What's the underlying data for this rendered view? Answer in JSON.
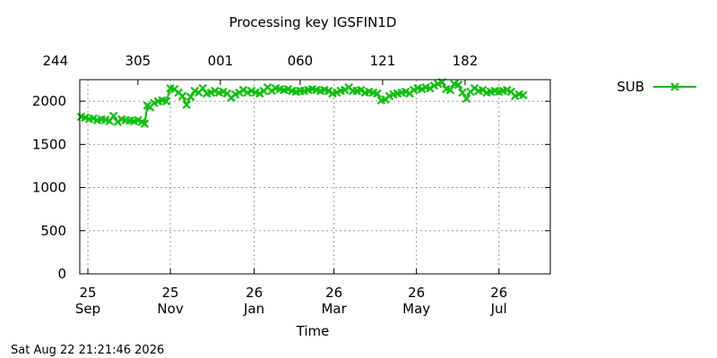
{
  "footer_timestamp": "Sat Aug 22 21:21:46 2026",
  "chart_data": {
    "type": "line",
    "title": "Processing key IGSFIN1D",
    "xlabel": "Time",
    "ylabel": "",
    "xlim": [
      "2025-09-19",
      "2026-09-02"
    ],
    "ylim": [
      0,
      2250
    ],
    "yticks": [
      0,
      500,
      1000,
      1500,
      2000
    ],
    "x_ticks_bottom": [
      {
        "date": "2025-09-25",
        "line1": "25",
        "line2": "Sep"
      },
      {
        "date": "2025-11-25",
        "line1": "25",
        "line2": "Nov"
      },
      {
        "date": "2026-01-26",
        "line1": "26",
        "line2": "Jan"
      },
      {
        "date": "2026-03-26",
        "line1": "26",
        "line2": "Mar"
      },
      {
        "date": "2026-05-26",
        "line1": "26",
        "line2": "May"
      },
      {
        "date": "2026-07-26",
        "line1": "26",
        "line2": "Jul"
      }
    ],
    "x_ticks_top": [
      {
        "date": "2025-09-01",
        "label": "244"
      },
      {
        "date": "2025-11-01",
        "label": "305"
      },
      {
        "date": "2026-01-01",
        "label": "001"
      },
      {
        "date": "2026-03-01",
        "label": "060"
      },
      {
        "date": "2026-05-01",
        "label": "121"
      },
      {
        "date": "2026-07-01",
        "label": "182"
      }
    ],
    "grid": true,
    "legend_position": "outside-right",
    "colors": {
      "series": "#11c011"
    },
    "series": [
      {
        "name": "SUB",
        "marker": "x",
        "points": [
          [
            "2025-09-20",
            1820
          ],
          [
            "2025-09-23",
            1810
          ],
          [
            "2025-09-26",
            1795
          ],
          [
            "2025-09-29",
            1800
          ],
          [
            "2025-10-02",
            1780
          ],
          [
            "2025-10-05",
            1790
          ],
          [
            "2025-10-08",
            1785
          ],
          [
            "2025-10-11",
            1770
          ],
          [
            "2025-10-14",
            1830
          ],
          [
            "2025-10-17",
            1760
          ],
          [
            "2025-10-20",
            1790
          ],
          [
            "2025-10-23",
            1780
          ],
          [
            "2025-10-26",
            1775
          ],
          [
            "2025-10-29",
            1770
          ],
          [
            "2025-11-01",
            1780
          ],
          [
            "2025-11-04",
            1760
          ],
          [
            "2025-11-06",
            1740
          ],
          [
            "2025-11-08",
            1950
          ],
          [
            "2025-11-10",
            1930
          ],
          [
            "2025-11-13",
            1980
          ],
          [
            "2025-11-16",
            2000
          ],
          [
            "2025-11-19",
            2010
          ],
          [
            "2025-11-22",
            2000
          ],
          [
            "2025-11-25",
            2150
          ],
          [
            "2025-11-28",
            2140
          ],
          [
            "2025-12-01",
            2100
          ],
          [
            "2025-12-04",
            2060
          ],
          [
            "2025-12-07",
            1960
          ],
          [
            "2025-12-10",
            2050
          ],
          [
            "2025-12-13",
            2120
          ],
          [
            "2025-12-16",
            2100
          ],
          [
            "2025-12-19",
            2150
          ],
          [
            "2025-12-22",
            2090
          ],
          [
            "2025-12-25",
            2100
          ],
          [
            "2025-12-28",
            2120
          ],
          [
            "2025-12-31",
            2100
          ],
          [
            "2026-01-03",
            2110
          ],
          [
            "2026-01-06",
            2090
          ],
          [
            "2026-01-09",
            2040
          ],
          [
            "2026-01-12",
            2080
          ],
          [
            "2026-01-15",
            2100
          ],
          [
            "2026-01-18",
            2130
          ],
          [
            "2026-01-21",
            2100
          ],
          [
            "2026-01-24",
            2120
          ],
          [
            "2026-01-27",
            2100
          ],
          [
            "2026-01-30",
            2090
          ],
          [
            "2026-02-02",
            2120
          ],
          [
            "2026-02-05",
            2160
          ],
          [
            "2026-02-08",
            2120
          ],
          [
            "2026-02-11",
            2150
          ],
          [
            "2026-02-14",
            2140
          ],
          [
            "2026-02-17",
            2130
          ],
          [
            "2026-02-20",
            2140
          ],
          [
            "2026-02-23",
            2120
          ],
          [
            "2026-02-26",
            2110
          ],
          [
            "2026-03-01",
            2120
          ],
          [
            "2026-03-04",
            2120
          ],
          [
            "2026-03-07",
            2130
          ],
          [
            "2026-03-10",
            2140
          ],
          [
            "2026-03-13",
            2130
          ],
          [
            "2026-03-16",
            2120
          ],
          [
            "2026-03-19",
            2130
          ],
          [
            "2026-03-22",
            2120
          ],
          [
            "2026-03-25",
            2090
          ],
          [
            "2026-03-28",
            2100
          ],
          [
            "2026-03-31",
            2120
          ],
          [
            "2026-04-03",
            2130
          ],
          [
            "2026-04-06",
            2160
          ],
          [
            "2026-04-09",
            2120
          ],
          [
            "2026-04-12",
            2120
          ],
          [
            "2026-04-15",
            2130
          ],
          [
            "2026-04-18",
            2100
          ],
          [
            "2026-04-21",
            2110
          ],
          [
            "2026-04-24",
            2100
          ],
          [
            "2026-04-27",
            2090
          ],
          [
            "2026-04-30",
            2010
          ],
          [
            "2026-05-03",
            2020
          ],
          [
            "2026-05-06",
            2060
          ],
          [
            "2026-05-09",
            2080
          ],
          [
            "2026-05-12",
            2090
          ],
          [
            "2026-05-15",
            2100
          ],
          [
            "2026-05-18",
            2110
          ],
          [
            "2026-05-21",
            2090
          ],
          [
            "2026-05-24",
            2130
          ],
          [
            "2026-05-27",
            2150
          ],
          [
            "2026-05-30",
            2140
          ],
          [
            "2026-06-02",
            2160
          ],
          [
            "2026-06-05",
            2150
          ],
          [
            "2026-06-08",
            2180
          ],
          [
            "2026-06-11",
            2200
          ],
          [
            "2026-06-14",
            2220
          ],
          [
            "2026-06-17",
            2140
          ],
          [
            "2026-06-20",
            2130
          ],
          [
            "2026-06-23",
            2200
          ],
          [
            "2026-06-26",
            2190
          ],
          [
            "2026-06-29",
            2100
          ],
          [
            "2026-07-02",
            2030
          ],
          [
            "2026-07-05",
            2110
          ],
          [
            "2026-07-08",
            2150
          ],
          [
            "2026-07-11",
            2120
          ],
          [
            "2026-07-14",
            2130
          ],
          [
            "2026-07-17",
            2100
          ],
          [
            "2026-07-20",
            2110
          ],
          [
            "2026-07-23",
            2120
          ],
          [
            "2026-07-26",
            2110
          ],
          [
            "2026-07-29",
            2120
          ],
          [
            "2026-08-01",
            2130
          ],
          [
            "2026-08-04",
            2110
          ],
          [
            "2026-08-07",
            2060
          ],
          [
            "2026-08-10",
            2080
          ],
          [
            "2026-08-13",
            2070
          ]
        ]
      }
    ]
  }
}
